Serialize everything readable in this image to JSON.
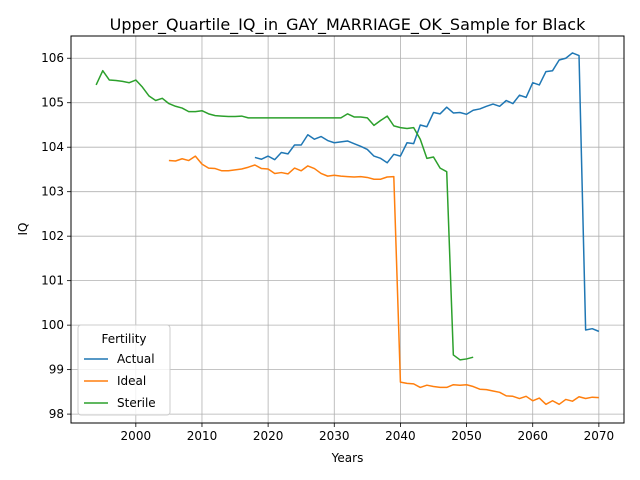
{
  "chart_data": {
    "type": "line",
    "title": "Upper_Quartile_IQ_in_GAY_MARRIAGE_OK_Sample for Black",
    "xlabel": "Years",
    "ylabel": "IQ",
    "xlim": [
      1990.2,
      2073.8
    ],
    "ylim": [
      97.8,
      106.5
    ],
    "xticks": [
      2000,
      2010,
      2020,
      2030,
      2040,
      2050,
      2060,
      2070
    ],
    "yticks": [
      98,
      99,
      100,
      101,
      102,
      103,
      104,
      105,
      106
    ],
    "grid": true,
    "legend": {
      "title": "Fertility",
      "placement": "lower-left"
    },
    "series": [
      {
        "name": "Actual",
        "color": "#1f77b4",
        "x": [
          2018,
          2019,
          2020,
          2021,
          2022,
          2023,
          2024,
          2025,
          2026,
          2027,
          2028,
          2029,
          2030,
          2031,
          2032,
          2033,
          2034,
          2035,
          2036,
          2037,
          2038,
          2039,
          2040,
          2041,
          2042,
          2043,
          2044,
          2045,
          2046,
          2047,
          2048,
          2049,
          2050,
          2051,
          2052,
          2053,
          2054,
          2055,
          2056,
          2057,
          2058,
          2059,
          2060,
          2061,
          2062,
          2063,
          2064,
          2065,
          2066,
          2067,
          2068,
          2069,
          2070
        ],
        "values": [
          103.77,
          103.73,
          103.8,
          103.72,
          103.88,
          103.85,
          104.05,
          104.05,
          104.28,
          104.18,
          104.24,
          104.15,
          104.1,
          104.12,
          104.14,
          104.08,
          104.02,
          103.95,
          103.8,
          103.75,
          103.65,
          103.84,
          103.8,
          104.1,
          104.08,
          104.5,
          104.46,
          104.78,
          104.75,
          104.9,
          104.77,
          104.78,
          104.74,
          104.83,
          104.86,
          104.92,
          104.97,
          104.92,
          105.05,
          104.98,
          105.17,
          105.12,
          105.45,
          105.4,
          105.7,
          105.72,
          105.96,
          106.0,
          106.12,
          106.06,
          99.89,
          99.92,
          99.86
        ]
      },
      {
        "name": "Ideal",
        "color": "#ff7f0e",
        "x": [
          2005,
          2006,
          2007,
          2008,
          2009,
          2010,
          2011,
          2012,
          2013,
          2014,
          2015,
          2016,
          2017,
          2018,
          2019,
          2020,
          2021,
          2022,
          2023,
          2024,
          2025,
          2026,
          2027,
          2028,
          2029,
          2030,
          2031,
          2032,
          2033,
          2034,
          2035,
          2036,
          2037,
          2038,
          2039,
          2040,
          2041,
          2042,
          2043,
          2044,
          2045,
          2046,
          2047,
          2048,
          2049,
          2050,
          2051,
          2052,
          2053,
          2054,
          2055,
          2056,
          2057,
          2058,
          2059,
          2060,
          2061,
          2062,
          2063,
          2064,
          2065,
          2066,
          2067,
          2068,
          2069,
          2070
        ],
        "values": [
          103.7,
          103.69,
          103.74,
          103.7,
          103.8,
          103.62,
          103.53,
          103.52,
          103.47,
          103.47,
          103.49,
          103.51,
          103.55,
          103.6,
          103.52,
          103.51,
          103.41,
          103.43,
          103.4,
          103.53,
          103.47,
          103.58,
          103.52,
          103.41,
          103.35,
          103.37,
          103.35,
          103.34,
          103.33,
          103.34,
          103.32,
          103.28,
          103.28,
          103.33,
          103.34,
          98.72,
          98.69,
          98.68,
          98.6,
          98.65,
          98.62,
          98.6,
          98.6,
          98.66,
          98.65,
          98.66,
          98.62,
          98.56,
          98.55,
          98.52,
          98.49,
          98.41,
          98.4,
          98.35,
          98.4,
          98.3,
          98.36,
          98.22,
          98.3,
          98.22,
          98.33,
          98.29,
          98.39,
          98.35,
          98.38,
          98.37
        ]
      },
      {
        "name": "Sterile",
        "color": "#2ca02c",
        "x": [
          1994,
          1995,
          1996,
          1997,
          1998,
          1999,
          2000,
          2001,
          2002,
          2003,
          2004,
          2005,
          2006,
          2007,
          2008,
          2009,
          2010,
          2011,
          2012,
          2013,
          2014,
          2015,
          2016,
          2017,
          2018,
          2019,
          2020,
          2021,
          2022,
          2023,
          2024,
          2025,
          2026,
          2027,
          2028,
          2029,
          2030,
          2031,
          2032,
          2033,
          2034,
          2035,
          2036,
          2037,
          2038,
          2039,
          2040,
          2041,
          2042,
          2043,
          2044,
          2045,
          2046,
          2047,
          2048,
          2049,
          2050,
          2051
        ],
        "values": [
          105.4,
          105.72,
          105.51,
          105.5,
          105.48,
          105.45,
          105.51,
          105.35,
          105.15,
          105.05,
          105.1,
          104.98,
          104.92,
          104.88,
          104.8,
          104.8,
          104.82,
          104.75,
          104.71,
          104.7,
          104.69,
          104.69,
          104.7,
          104.66,
          104.66,
          104.66,
          104.66,
          104.66,
          104.66,
          104.66,
          104.66,
          104.66,
          104.66,
          104.66,
          104.66,
          104.66,
          104.66,
          104.66,
          104.75,
          104.68,
          104.68,
          104.66,
          104.49,
          104.6,
          104.7,
          104.48,
          104.44,
          104.42,
          104.44,
          104.18,
          103.75,
          103.78,
          103.53,
          103.45,
          99.33,
          99.22,
          99.24,
          99.28
        ]
      }
    ]
  }
}
